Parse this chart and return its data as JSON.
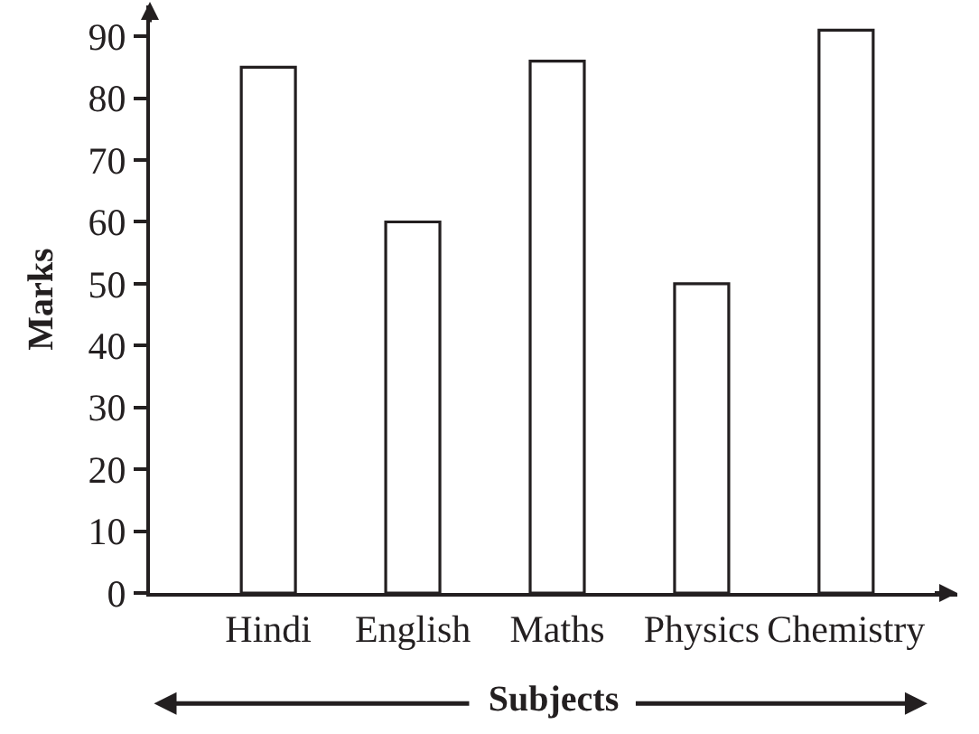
{
  "chart_data": {
    "type": "bar",
    "xlabel": "Subjects",
    "ylabel": "Marks",
    "categories": [
      "Hindi",
      "English",
      "Maths",
      "Physics",
      "Chemistry"
    ],
    "values": [
      85,
      60,
      86,
      50,
      91
    ],
    "color": "#ffffff",
    "ylim": [
      0,
      95
    ],
    "yticks": [
      0,
      10,
      20,
      30,
      40,
      50,
      60,
      70,
      80,
      90
    ]
  }
}
